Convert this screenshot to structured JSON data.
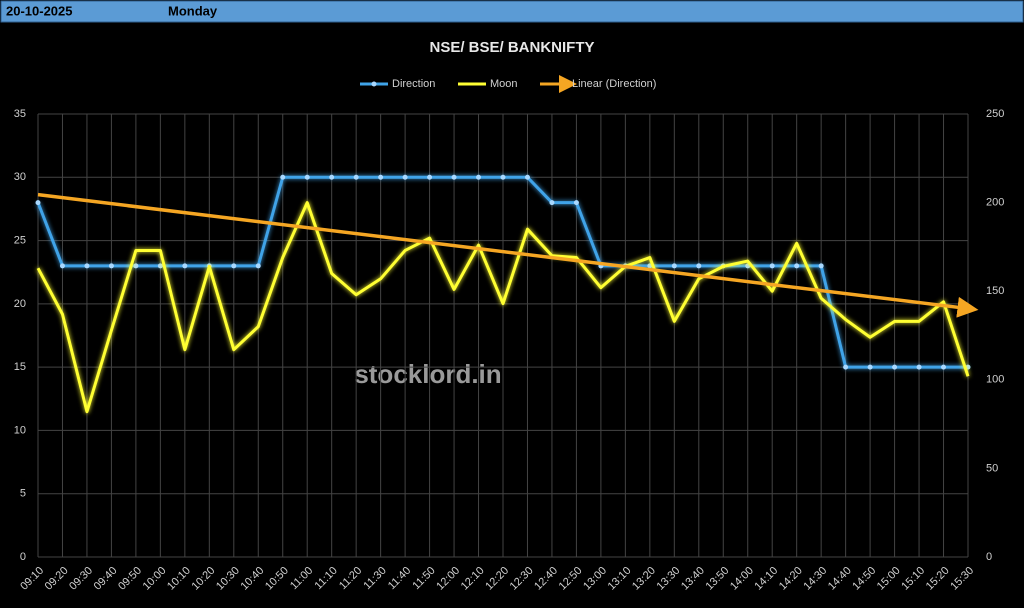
{
  "header": {
    "date": "20-10-2025",
    "day": "Monday"
  },
  "chart_data": {
    "type": "line",
    "title": "NSE/ BSE/ BANKNIFTY",
    "watermark": "stocklord.in",
    "categories": [
      "09:10",
      "09:20",
      "09:30",
      "09:40",
      "09:50",
      "10:00",
      "10:10",
      "10:20",
      "10:30",
      "10:40",
      "10:50",
      "11:00",
      "11:10",
      "11:20",
      "11:30",
      "11:40",
      "11:50",
      "12:00",
      "12:10",
      "12:20",
      "12:30",
      "12:40",
      "12:50",
      "13:00",
      "13:10",
      "13:20",
      "13:30",
      "13:40",
      "13:50",
      "14:00",
      "14:10",
      "14:20",
      "14:30",
      "14:40",
      "14:50",
      "15:00",
      "15:10",
      "15:20",
      "15:30"
    ],
    "series": [
      {
        "name": "Direction",
        "color": "#3fa3e8",
        "axis": "y",
        "values": [
          28,
          23,
          23,
          23,
          23,
          23,
          23,
          23,
          23,
          23,
          30,
          30,
          30,
          30,
          30,
          30,
          30,
          30,
          30,
          30,
          30,
          28,
          28,
          23,
          23,
          23,
          23,
          23,
          23,
          23,
          23,
          23,
          23,
          15,
          15,
          15,
          15,
          15,
          15
        ]
      },
      {
        "name": "Moon",
        "color": "#ffff33",
        "axis": "y2",
        "values": [
          163,
          137,
          82,
          128,
          173,
          173,
          117,
          164,
          117,
          130,
          169,
          200,
          160,
          148,
          157,
          173,
          180,
          151,
          176,
          143,
          185,
          170,
          169,
          152,
          164,
          169,
          133,
          157,
          164,
          167,
          150,
          177,
          146,
          134,
          124,
          133,
          133,
          144,
          102
        ]
      }
    ],
    "trendline": {
      "name": "Linear (Direction)",
      "color": "#f5a623"
    },
    "ylim": [
      0,
      35
    ],
    "yticks": [
      0,
      5,
      10,
      15,
      20,
      25,
      30,
      35
    ],
    "y2lim": [
      0,
      250
    ],
    "y2ticks": [
      0,
      50,
      100,
      150,
      200,
      250
    ],
    "grid": true,
    "legend": "top"
  }
}
